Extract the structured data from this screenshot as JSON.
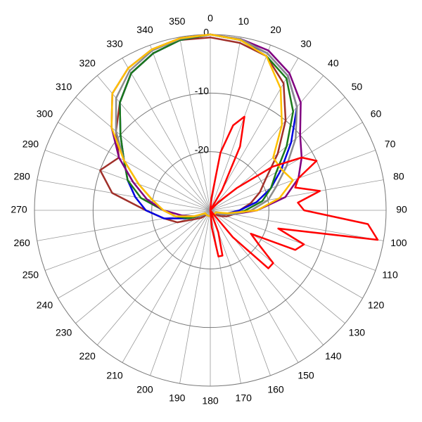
{
  "chart_data": {
    "type": "polar",
    "rlim": [
      -30,
      0
    ],
    "rticks": [
      -20,
      -10,
      0
    ],
    "thetaticks": [
      0,
      10,
      20,
      30,
      40,
      50,
      60,
      70,
      80,
      90,
      100,
      110,
      120,
      130,
      140,
      150,
      160,
      170,
      180,
      190,
      200,
      210,
      220,
      230,
      240,
      250,
      260,
      270,
      280,
      290,
      300,
      310,
      320,
      330,
      340,
      350
    ],
    "theta": [
      0,
      10,
      20,
      30,
      40,
      50,
      60,
      70,
      80,
      90,
      100,
      110,
      120,
      130,
      140,
      150,
      160,
      170,
      180,
      190,
      200,
      210,
      220,
      230,
      240,
      250,
      260,
      270,
      280,
      290,
      300,
      310,
      320,
      330,
      340,
      350
    ],
    "grid": true,
    "series": [
      {
        "color": "#a0302a",
        "values": [
          -0.5,
          -1,
          -2,
          -5,
          -10,
          -15,
          -19,
          -21,
          -23,
          -25,
          -26,
          -27,
          -28,
          -29,
          -29,
          -29,
          -29,
          -29,
          -29,
          -29,
          -29,
          -29,
          -29,
          -28,
          -27,
          -24,
          -22,
          -19,
          -13,
          -10,
          -12,
          -9,
          -6,
          -3,
          -1.5,
          -0.5
        ]
      },
      {
        "color": "#0000e0",
        "values": [
          0,
          -0.5,
          -1.5,
          -3.5,
          -7,
          -12,
          -16,
          -19,
          -22,
          -25,
          -27,
          -28,
          -29,
          -29,
          -29,
          -29,
          -29,
          -29,
          -29,
          -29,
          -29,
          -29,
          -29,
          -29,
          -28,
          -26,
          -22,
          -19,
          -17,
          -15,
          -13,
          -10,
          -6,
          -3,
          -1.5,
          -0.5
        ]
      },
      {
        "color": "#1a7a1a",
        "values": [
          0,
          -0.5,
          -2,
          -4,
          -8,
          -13,
          -17,
          -19,
          -21,
          -24,
          -26,
          -28,
          -29,
          -29,
          -29,
          -29,
          -29,
          -29,
          -29,
          -29,
          -29,
          -29,
          -29,
          -29,
          -28,
          -26,
          -24,
          -22,
          -18,
          -15,
          -13,
          -10,
          -6,
          -3,
          -1.5,
          -0.5
        ]
      },
      {
        "color": "#800080",
        "values": [
          0,
          -0.3,
          -1,
          -3,
          -6,
          -10,
          -12,
          -14,
          -17,
          -22,
          -26,
          -28,
          -29,
          -29,
          -29,
          -29,
          -29,
          -29,
          -29,
          -29,
          -29,
          -29,
          -29,
          -29,
          -28,
          -27,
          -25,
          -22,
          -19,
          -16,
          -12,
          -8,
          -4,
          -2,
          -0.8,
          -0.2
        ]
      },
      {
        "color": "#8c8c8c",
        "values": [
          0,
          -0.3,
          -1.5,
          -3.5,
          -7,
          -11,
          -15,
          -18,
          -20,
          -23,
          -26,
          -28,
          -29,
          -29,
          -29,
          -29,
          -29,
          -29,
          -29,
          -29,
          -29,
          -29,
          -29,
          -29,
          -28,
          -27,
          -24,
          -22,
          -20,
          -17,
          -13,
          -9,
          -5,
          -2.5,
          -1,
          -0.3
        ]
      },
      {
        "color": "#ffc000",
        "values": [
          0,
          -0.5,
          -2,
          -6,
          -11,
          -16,
          -16,
          -15,
          -18,
          -22,
          -27,
          -29,
          -29,
          -29,
          -29,
          -29,
          -29,
          -29,
          -29,
          -29,
          -29,
          -29,
          -29,
          -29,
          -29,
          -27,
          -24,
          -22,
          -20,
          -17,
          -13,
          -8,
          -4,
          -2,
          -0.8,
          -0.2
        ]
      },
      {
        "color": "#ff0000",
        "theta": [
          0,
          5,
          10,
          15,
          20,
          25,
          30,
          35,
          40,
          45,
          50,
          55,
          60,
          65,
          70,
          75,
          80,
          85,
          90,
          95,
          100,
          105,
          110,
          115,
          120,
          125,
          130,
          135,
          140,
          145,
          150,
          155,
          160,
          165,
          170,
          175,
          180,
          185,
          190,
          195,
          200,
          205,
          210,
          215,
          220,
          225,
          230,
          235,
          240,
          245,
          250,
          255,
          260,
          265,
          270,
          275,
          280,
          285,
          290,
          295,
          300,
          305,
          310,
          315,
          320,
          325,
          330,
          335,
          340,
          345,
          350,
          355
        ],
        "values": [
          -30,
          -28,
          -20,
          -15,
          -13,
          -18,
          -26,
          -30,
          -30,
          -28,
          -24,
          -17,
          -12,
          -10,
          -14,
          -15,
          -11,
          -15,
          -14,
          -3,
          -1,
          -18,
          -13,
          -14,
          -22,
          -20,
          -16,
          -16,
          -24,
          -30,
          -30,
          -30,
          -26,
          -22,
          -22,
          -27,
          -30,
          -30,
          -30,
          -30,
          -30,
          -30,
          -30,
          -30,
          -30,
          -30,
          -30,
          -30,
          -30,
          -30,
          -30,
          -30,
          -30,
          -30,
          -30,
          -30,
          -30,
          -30,
          -30,
          -30,
          -30,
          -30,
          -30,
          -30,
          -30,
          -30,
          -30,
          -30,
          -30,
          -30,
          -30,
          -30
        ]
      }
    ]
  }
}
